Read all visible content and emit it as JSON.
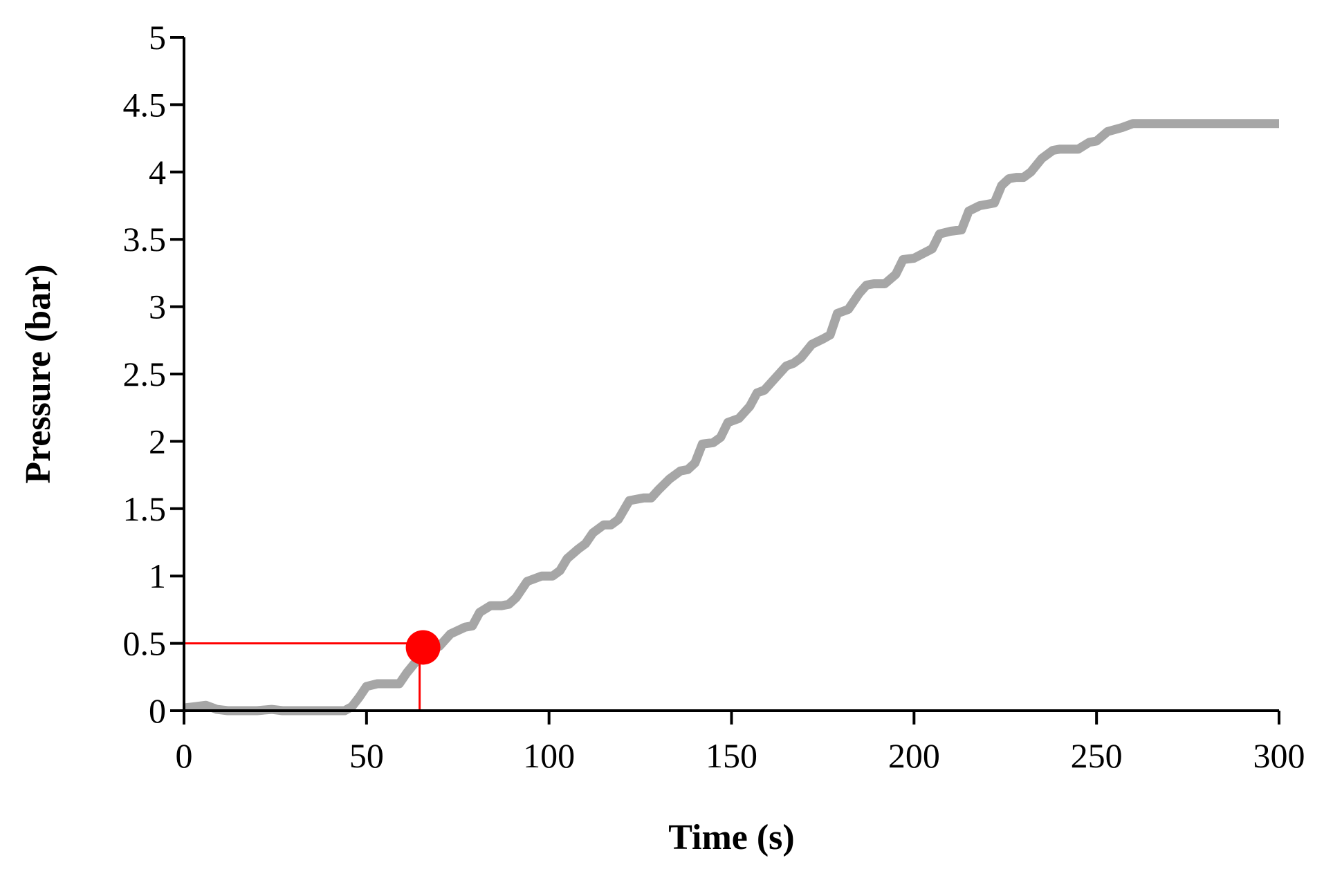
{
  "chart_data": {
    "type": "line",
    "title": "",
    "xlabel": "Time (s)",
    "ylabel": "Pressure (bar)",
    "xlim": [
      0,
      300
    ],
    "ylim": [
      0,
      5
    ],
    "xticks": [
      0,
      50,
      100,
      150,
      200,
      250,
      300
    ],
    "yticks": [
      0,
      0.5,
      1,
      1.5,
      2,
      2.5,
      3,
      3.5,
      4,
      4.5,
      5
    ],
    "grid": false,
    "legend": "none",
    "series": [
      {
        "color": "#a6a6a6",
        "x": [
          0,
          3,
          6,
          9,
          12,
          15,
          20,
          24,
          27,
          30,
          35,
          40,
          44,
          46,
          48,
          50,
          53,
          57,
          59,
          61,
          64,
          67,
          70,
          73,
          77,
          79,
          81,
          84,
          87,
          89,
          91,
          94,
          98,
          101,
          103,
          105,
          108,
          110,
          112,
          115,
          117,
          119,
          122,
          126,
          128,
          130,
          133,
          136,
          138,
          140,
          142,
          145,
          147,
          149,
          152,
          155,
          157,
          159,
          162,
          165,
          167,
          169,
          172,
          175,
          177,
          179,
          182,
          185,
          187,
          189,
          192,
          195,
          197,
          200,
          205,
          207,
          210,
          213,
          215,
          218,
          222,
          224,
          226,
          228,
          230,
          232,
          235,
          238,
          240,
          242,
          245,
          248,
          250,
          253,
          257,
          260,
          263,
          266,
          270,
          274,
          277,
          280,
          290,
          300
        ],
        "y": [
          0.02,
          0.03,
          0.04,
          0.01,
          0.0,
          0.0,
          0.0,
          0.01,
          0.0,
          0.0,
          0.0,
          0.0,
          0.0,
          0.03,
          0.1,
          0.18,
          0.2,
          0.2,
          0.2,
          0.28,
          0.38,
          0.44,
          0.48,
          0.57,
          0.62,
          0.63,
          0.73,
          0.78,
          0.78,
          0.79,
          0.84,
          0.96,
          1.0,
          1.0,
          1.04,
          1.13,
          1.2,
          1.24,
          1.32,
          1.38,
          1.38,
          1.42,
          1.56,
          1.58,
          1.58,
          1.64,
          1.72,
          1.78,
          1.79,
          1.84,
          1.98,
          1.99,
          2.03,
          2.14,
          2.17,
          2.26,
          2.36,
          2.38,
          2.47,
          2.56,
          2.58,
          2.62,
          2.72,
          2.76,
          2.79,
          2.95,
          2.98,
          3.1,
          3.16,
          3.17,
          3.17,
          3.24,
          3.35,
          3.36,
          3.43,
          3.54,
          3.56,
          3.57,
          3.71,
          3.75,
          3.77,
          3.9,
          3.95,
          3.96,
          3.96,
          4.0,
          4.1,
          4.16,
          4.17,
          4.17,
          4.17,
          4.22,
          4.23,
          4.3,
          4.33,
          4.36,
          4.36,
          4.36,
          4.36,
          4.36,
          4.36,
          4.36,
          4.36,
          4.36
        ]
      }
    ],
    "annotations": [
      {
        "type": "marker-with-guides",
        "x": 65.5,
        "y": 0.47,
        "guide_y": 0.5,
        "color": "#ff0000"
      }
    ]
  }
}
